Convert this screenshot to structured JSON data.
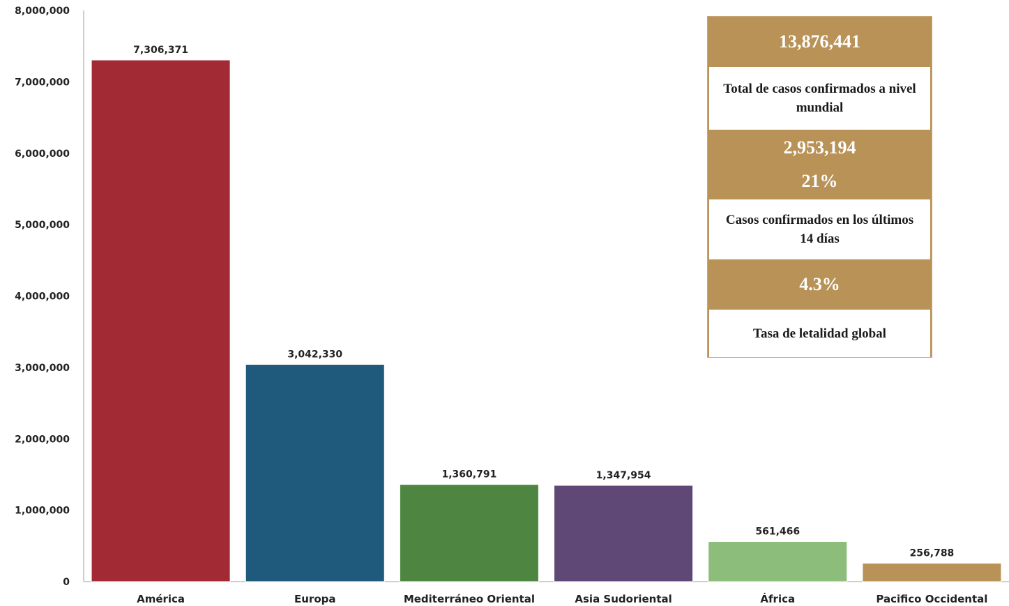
{
  "chart_data": {
    "type": "bar",
    "categories": [
      "América",
      "Europa",
      "Mediterráneo Oriental",
      "Asia Sudoriental",
      "África",
      "Pacifico Occidental"
    ],
    "values": [
      7306371,
      3042330,
      1360791,
      1347954,
      561466,
      256788
    ],
    "value_labels": [
      "7,306,371",
      "3,042,330",
      "1,360,791",
      "1,347,954",
      "561,466",
      "256,788"
    ],
    "colors": [
      "#a12a35",
      "#1f5a7c",
      "#4e8641",
      "#5f4875",
      "#8cbd7b",
      "#b89256"
    ],
    "ylim": [
      0,
      8000000
    ],
    "yticks": [
      0,
      1000000,
      2000000,
      3000000,
      4000000,
      5000000,
      6000000,
      7000000,
      8000000
    ],
    "ytick_labels": [
      "0",
      "1,000,000",
      "2,000,000",
      "3,000,000",
      "4,000,000",
      "5,000,000",
      "6,000,000",
      "7,000,000",
      "8,000,000"
    ],
    "title": "",
    "xlabel": "",
    "ylabel": "",
    "grid": false,
    "legend": "none"
  },
  "summary": {
    "total_cases": "13,876,441",
    "total_cases_label": "Total de casos confirmados a nivel mundial",
    "recent_cases": "2,953,194",
    "recent_percent": "21%",
    "recent_cases_label": "Casos confirmados en los últimos 14 días",
    "fatality_rate": "4.3%",
    "fatality_rate_label": "Tasa de letalidad global"
  },
  "colors": {
    "summary_gold": "#b89256"
  }
}
